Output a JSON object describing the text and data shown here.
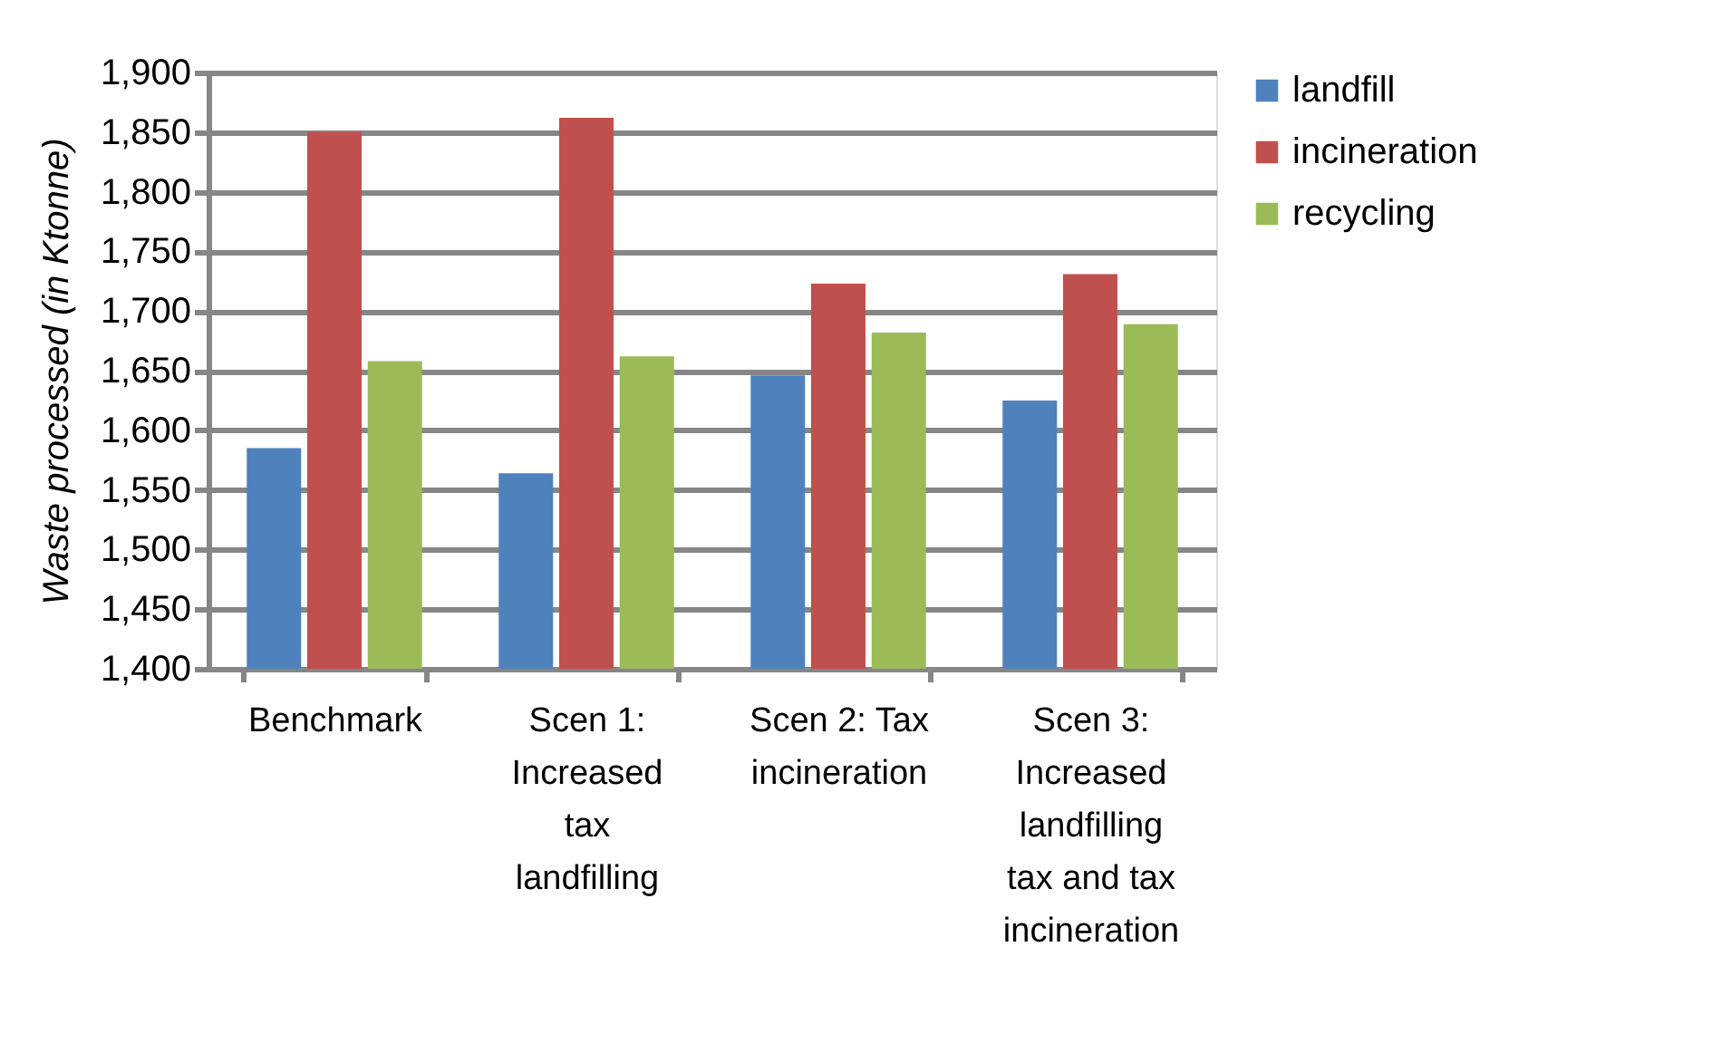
{
  "chart_data": {
    "type": "bar",
    "ylabel": "Waste processed  (in Ktonne)",
    "categories": [
      "Benchmark",
      "Scen 1:\nIncreased\ntax\nlandfilling",
      "Scen 2: Tax\nincineration",
      "Scen 3:\nIncreased\nlandfilling\ntax and tax\nincineration"
    ],
    "series": [
      {
        "name": "landfill",
        "color": "#4f81bd",
        "values": [
          1585,
          1564,
          1646,
          1625
        ]
      },
      {
        "name": "incineration",
        "color": "#c0504d",
        "values": [
          1850,
          1862,
          1723,
          1731
        ]
      },
      {
        "name": "recycling",
        "color": "#9bbb59",
        "values": [
          1658,
          1662,
          1682,
          1689
        ]
      }
    ],
    "ylim": [
      1400,
      1900
    ],
    "yticks": [
      {
        "value": 1400,
        "label": "1,400"
      },
      {
        "value": 1450,
        "label": "1,450"
      },
      {
        "value": 1500,
        "label": "1,500"
      },
      {
        "value": 1550,
        "label": "1,550"
      },
      {
        "value": 1600,
        "label": "1,600"
      },
      {
        "value": 1650,
        "label": "1,650"
      },
      {
        "value": 1700,
        "label": "1,700"
      },
      {
        "value": 1750,
        "label": "1,750"
      },
      {
        "value": 1800,
        "label": "1,800"
      },
      {
        "value": 1850,
        "label": "1,850"
      },
      {
        "value": 1900,
        "label": "1,900"
      }
    ],
    "grid": "y",
    "legend": "right"
  }
}
